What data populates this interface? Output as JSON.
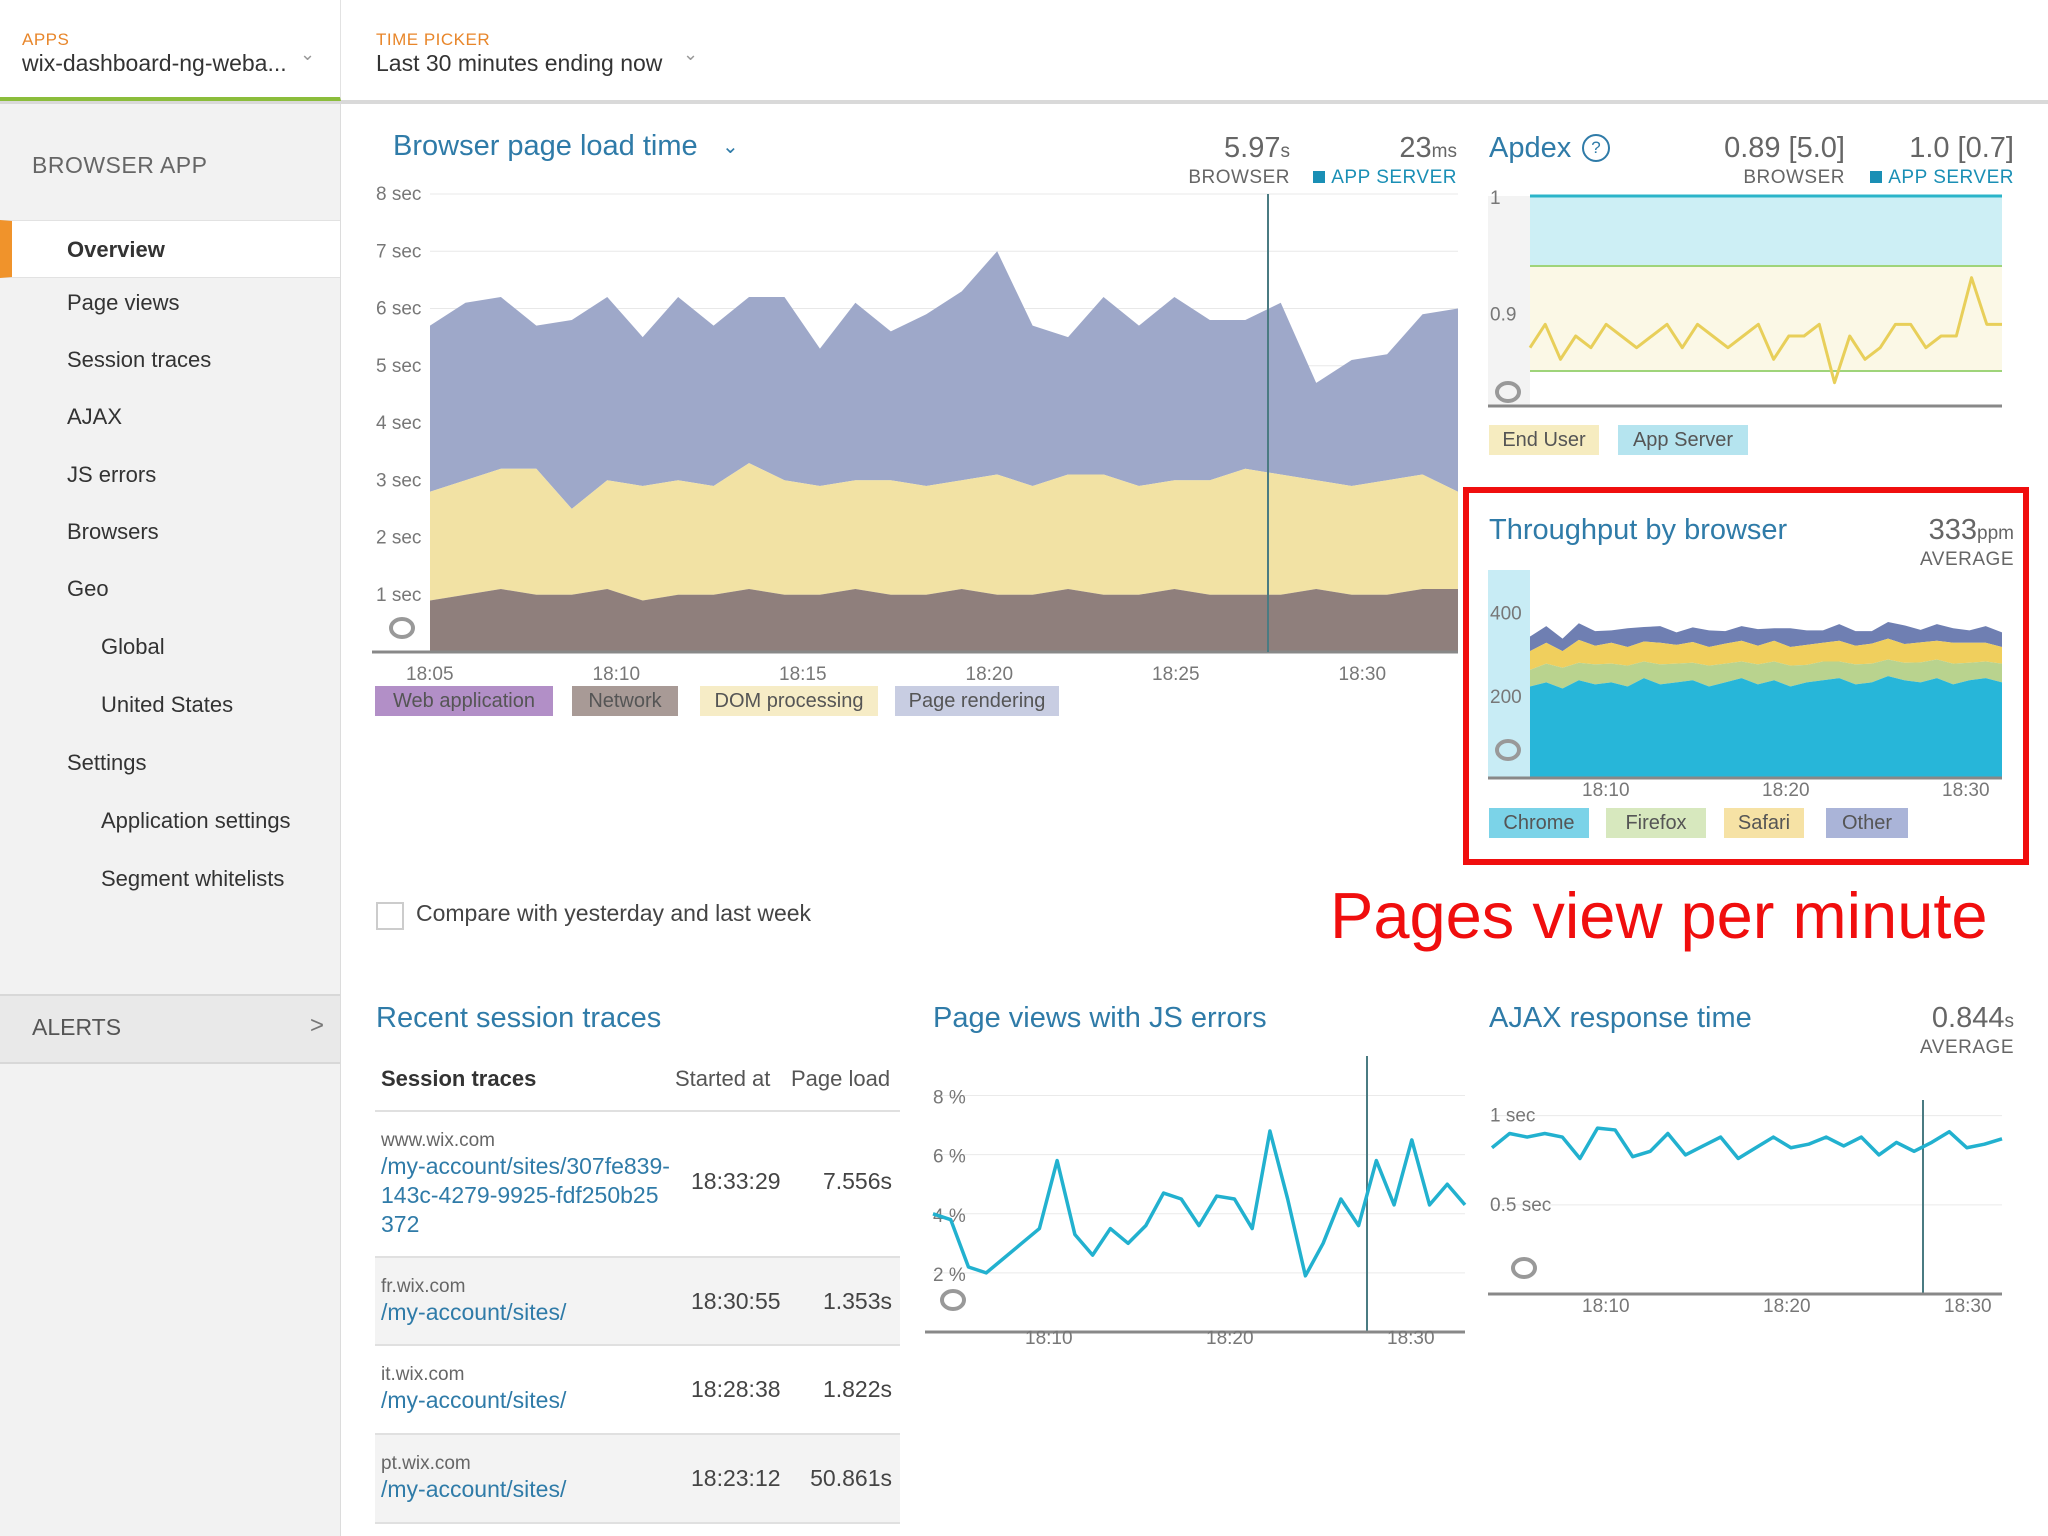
{
  "topbar": {
    "apps": {
      "caption": "APPS",
      "value": "wix-dashboard-ng-weba..."
    },
    "time_picker": {
      "caption": "TIME PICKER",
      "value": "Last 30 minutes ending now"
    }
  },
  "sidebar": {
    "heading": "BROWSER APP",
    "items": [
      {
        "label": "Overview",
        "active": true
      },
      {
        "label": "Page views"
      },
      {
        "label": "Session traces"
      },
      {
        "label": "AJAX"
      },
      {
        "label": "JS errors"
      },
      {
        "label": "Browsers"
      },
      {
        "label": "Geo"
      },
      {
        "label": "Global",
        "indent": true
      },
      {
        "label": "United States",
        "indent": true
      },
      {
        "label": "Settings"
      },
      {
        "label": "Application settings",
        "indent": true
      },
      {
        "label": "Segment whitelists",
        "indent": true
      }
    ],
    "alerts_label": "ALERTS",
    "alerts_chevron": ">"
  },
  "colors": {
    "accent_orange": "#f0932b",
    "link_blue": "#2f7ba8",
    "teal": "#1a8fb5",
    "highlight_red": "#f00e0e"
  },
  "page_load": {
    "title": "Browser page load time",
    "browser_value": "5.97",
    "browser_unit": "s",
    "browser_label": "BROWSER",
    "app_value": "23",
    "app_unit": "ms",
    "app_label": "APP SERVER",
    "legend": [
      {
        "label": "Web application",
        "color": "#b28fc7"
      },
      {
        "label": "Network",
        "color": "#a89a96"
      },
      {
        "label": "DOM processing",
        "color": "#f6ecc6"
      },
      {
        "label": "Page rendering",
        "color": "#c8cde2"
      }
    ]
  },
  "apdex": {
    "title": "Apdex",
    "browser_value": "0.89 [5.0]",
    "browser_label": "BROWSER",
    "app_value": "1.0 [0.7]",
    "app_label": "APP SERVER",
    "legend": [
      {
        "label": "End User",
        "color": "#f6ecc0"
      },
      {
        "label": "App Server",
        "color": "#b5e4ef"
      }
    ]
  },
  "throughput": {
    "title": "Throughput by browser",
    "value": "333",
    "unit": "ppm",
    "label": "AVERAGE",
    "legend": [
      {
        "label": "Chrome",
        "color": "#7bd3e8"
      },
      {
        "label": "Firefox",
        "color": "#d7e8be"
      },
      {
        "label": "Safari",
        "color": "#f6e2a5"
      },
      {
        "label": "Other",
        "color": "#aab4d8"
      }
    ]
  },
  "compare_label": "Compare with yesterday and last week",
  "annotation": "Pages view per minute",
  "session_traces": {
    "title": "Recent session traces",
    "headers": {
      "trace": "Session traces",
      "started": "Started at",
      "load": "Page load"
    },
    "rows": [
      {
        "host": "www.wix.com",
        "path": "/my-account/sites/307fe839-143c-4279-9925-fdf250b25372",
        "started": "18:33:29",
        "load": "7.556s"
      },
      {
        "host": "fr.wix.com",
        "path": "/my-account/sites/",
        "started": "18:30:55",
        "load": "1.353s"
      },
      {
        "host": "it.wix.com",
        "path": "/my-account/sites/",
        "started": "18:28:38",
        "load": "1.822s"
      },
      {
        "host": "pt.wix.com",
        "path": "/my-account/sites/",
        "started": "18:23:12",
        "load": "50.861s"
      }
    ]
  },
  "js_errors": {
    "title": "Page views with JS errors"
  },
  "ajax": {
    "title": "AJAX response time",
    "value": "0.844",
    "unit": "s",
    "label": "AVERAGE"
  },
  "chart_data": [
    {
      "type": "area",
      "id": "page-load",
      "x": [
        "18:04",
        "18:05",
        "18:06",
        "18:07",
        "18:08",
        "18:09",
        "18:10",
        "18:11",
        "18:12",
        "18:13",
        "18:14",
        "18:15",
        "18:16",
        "18:17",
        "18:18",
        "18:19",
        "18:20",
        "18:21",
        "18:22",
        "18:23",
        "18:24",
        "18:25",
        "18:26",
        "18:27",
        "18:28",
        "18:29",
        "18:30",
        "18:31",
        "18:32",
        "18:33"
      ],
      "xticks": [
        "18:05",
        "18:10",
        "18:15",
        "18:20",
        "18:25",
        "18:30"
      ],
      "ylim": [
        0,
        8
      ],
      "yticks": [
        "1 sec",
        "2 sec",
        "3 sec",
        "4 sec",
        "5 sec",
        "6 sec",
        "7 sec",
        "8 sec"
      ],
      "series": [
        {
          "name": "Network",
          "color": "#8f7f7c",
          "values": [
            0.9,
            1.0,
            1.1,
            1.0,
            1.0,
            1.1,
            0.9,
            1.0,
            1.0,
            1.1,
            1.0,
            1.0,
            1.1,
            1.0,
            1.0,
            1.1,
            1.0,
            1.0,
            1.1,
            1.0,
            1.0,
            1.1,
            1.0,
            1.0,
            1.0,
            1.1,
            1.0,
            1.0,
            1.1,
            1.1
          ]
        },
        {
          "name": "DOM processing",
          "color": "#f2e2a4",
          "values": [
            1.9,
            2.0,
            2.1,
            2.2,
            1.5,
            1.9,
            2.0,
            2.0,
            1.9,
            2.2,
            2.0,
            1.9,
            1.9,
            2.0,
            1.9,
            1.9,
            2.1,
            1.9,
            2.0,
            2.1,
            1.9,
            1.9,
            2.0,
            2.2,
            2.1,
            1.9,
            1.9,
            2.0,
            2.0,
            1.7
          ]
        },
        {
          "name": "Page rendering",
          "color": "#9ea8c9",
          "values": [
            2.9,
            3.1,
            3.0,
            2.5,
            3.3,
            3.2,
            2.6,
            3.2,
            2.8,
            2.9,
            3.2,
            2.4,
            3.1,
            2.6,
            3.0,
            3.3,
            3.9,
            2.8,
            2.4,
            3.1,
            2.8,
            3.2,
            2.8,
            2.6,
            3.0,
            1.7,
            2.2,
            2.2,
            2.8,
            3.2
          ]
        }
      ]
    },
    {
      "type": "line",
      "id": "apdex",
      "ylim": [
        0.82,
        1.0
      ],
      "yticks": [
        "0.9",
        "1"
      ],
      "series": [
        {
          "name": "End User",
          "color": "#e8cf5a",
          "values": [
            0.87,
            0.89,
            0.86,
            0.88,
            0.87,
            0.89,
            0.88,
            0.87,
            0.88,
            0.89,
            0.87,
            0.89,
            0.88,
            0.87,
            0.88,
            0.89,
            0.86,
            0.88,
            0.88,
            0.89,
            0.84,
            0.88,
            0.86,
            0.87,
            0.89,
            0.89,
            0.87,
            0.88,
            0.88,
            0.93,
            0.89,
            0.89
          ]
        },
        {
          "name": "App Server",
          "color": "#2bb4c9",
          "values": [
            1.0,
            1.0,
            1.0,
            1.0,
            1.0,
            1.0,
            1.0,
            1.0,
            1.0,
            1.0,
            1.0,
            1.0,
            1.0,
            1.0,
            1.0,
            1.0,
            1.0,
            1.0,
            1.0,
            1.0,
            1.0,
            1.0,
            1.0,
            1.0,
            1.0,
            1.0,
            1.0,
            1.0,
            1.0,
            1.0,
            1.0,
            1.0
          ]
        }
      ]
    },
    {
      "type": "area",
      "id": "throughput",
      "xticks": [
        "18:10",
        "18:20",
        "18:30"
      ],
      "ylim": [
        0,
        500
      ],
      "yticks": [
        "200",
        "400"
      ],
      "series": [
        {
          "name": "Chrome",
          "color": "#27b6d9",
          "values": [
            220,
            230,
            215,
            235,
            225,
            230,
            220,
            240,
            225,
            230,
            235,
            220,
            230,
            240,
            225,
            235,
            220,
            230,
            235,
            240,
            225,
            230,
            245,
            235,
            230,
            240,
            225,
            235,
            240,
            230
          ]
        },
        {
          "name": "Firefox",
          "color": "#b9d38e",
          "values": [
            40,
            45,
            50,
            42,
            48,
            45,
            50,
            40,
            48,
            45,
            42,
            50,
            45,
            40,
            48,
            45,
            50,
            42,
            45,
            40,
            48,
            45,
            40,
            42,
            48,
            45,
            50,
            42,
            40,
            45
          ]
        },
        {
          "name": "Safari",
          "color": "#f0cf5d",
          "values": [
            45,
            50,
            40,
            55,
            45,
            50,
            45,
            48,
            52,
            45,
            50,
            45,
            48,
            50,
            45,
            50,
            45,
            48,
            45,
            50,
            45,
            48,
            50,
            45,
            48,
            45,
            50,
            48,
            45,
            40
          ]
        },
        {
          "name": "Other",
          "color": "#6f7fb2",
          "values": [
            35,
            40,
            30,
            40,
            35,
            30,
            45,
            35,
            40,
            30,
            35,
            40,
            30,
            35,
            40,
            30,
            45,
            35,
            30,
            40,
            35,
            30,
            40,
            45,
            30,
            40,
            35,
            30,
            40,
            35
          ]
        }
      ]
    },
    {
      "type": "line",
      "id": "js-errors",
      "xticks": [
        "18:10",
        "18:20",
        "18:30"
      ],
      "ylim": [
        0,
        9
      ],
      "yticks": [
        "2 %",
        "4 %",
        "6 %",
        "8 %"
      ],
      "series": [
        {
          "name": "",
          "color": "#22b1cf",
          "values": [
            4.0,
            3.8,
            2.2,
            2.0,
            2.5,
            3.0,
            3.5,
            5.8,
            3.3,
            2.6,
            3.5,
            3.0,
            3.6,
            4.7,
            4.5,
            3.6,
            4.6,
            4.5,
            3.5,
            6.8,
            4.5,
            1.9,
            3.0,
            4.5,
            3.6,
            5.8,
            4.3,
            6.5,
            4.3,
            5.0,
            4.3
          ]
        }
      ]
    },
    {
      "type": "line",
      "id": "ajax",
      "xticks": [
        "18:10",
        "18:20",
        "18:30"
      ],
      "ylim": [
        0,
        1.2
      ],
      "yticks": [
        "0.5 sec",
        "1 sec"
      ],
      "series": [
        {
          "name": "",
          "color": "#22b1cf",
          "values": [
            0.82,
            0.9,
            0.88,
            0.9,
            0.88,
            0.76,
            0.93,
            0.92,
            0.77,
            0.8,
            0.9,
            0.78,
            0.83,
            0.88,
            0.76,
            0.82,
            0.88,
            0.82,
            0.84,
            0.88,
            0.83,
            0.88,
            0.78,
            0.85,
            0.8,
            0.85,
            0.91,
            0.82,
            0.84,
            0.87
          ]
        }
      ]
    }
  ]
}
